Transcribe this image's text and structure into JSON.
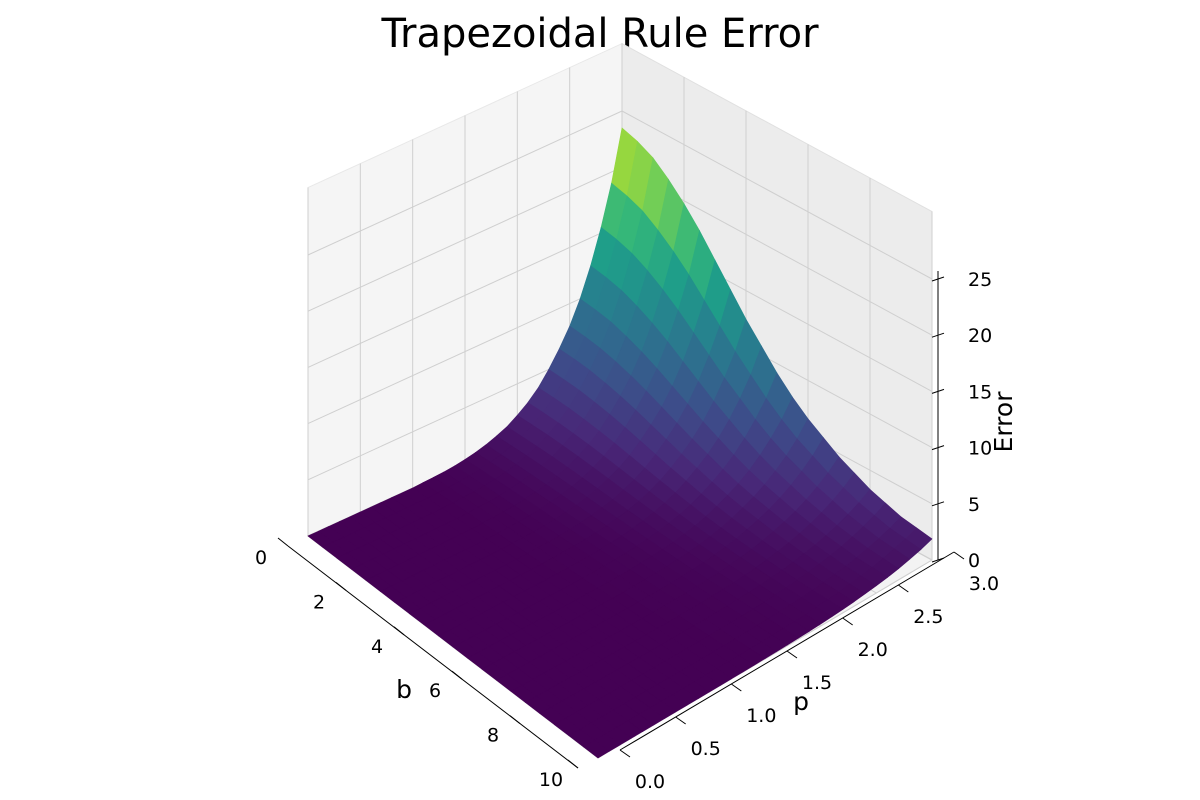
{
  "chart_data": {
    "type": "surface",
    "title": "Trapezoidal Rule Error",
    "xlabel": "b",
    "ylabel": "p",
    "zlabel": "Error",
    "xlim": [
      0,
      10
    ],
    "ylim": [
      0,
      3
    ],
    "zlim": [
      0,
      25
    ],
    "x_ticks": [
      "0",
      "2",
      "4",
      "6",
      "8",
      "10"
    ],
    "y_ticks": [
      "0.0",
      "0.5",
      "1.0",
      "1.5",
      "2.0",
      "2.5",
      "3.0"
    ],
    "z_ticks": [
      "0",
      "5",
      "10",
      "15",
      "20",
      "25"
    ],
    "colormap": "viridis",
    "grid": true,
    "b": [
      0,
      0.5,
      1,
      1.5,
      2,
      2.5,
      3,
      3.5,
      4,
      4.5,
      5,
      5.5,
      6,
      6.5,
      7,
      7.5,
      8,
      8.5,
      9,
      9.5,
      10
    ],
    "p": [
      0,
      0.1,
      0.2,
      0.3,
      0.4,
      0.5,
      0.6,
      0.7,
      0.8,
      0.9,
      1.0,
      1.1,
      1.2,
      1.3,
      1.4,
      1.5,
      1.6,
      1.7,
      1.8,
      1.9,
      2.0,
      2.1,
      2.2,
      2.3,
      2.4,
      2.5,
      2.6,
      2.7,
      2.8,
      2.9,
      3.0
    ],
    "error_max_at_b0": [
      0,
      0,
      0,
      0,
      0,
      0,
      0,
      0,
      0,
      0,
      0,
      0.05,
      0.1,
      0.15,
      0.25,
      0.4,
      0.6,
      0.85,
      1.2,
      1.6,
      2.2,
      2.9,
      3.8,
      5.0,
      6.4,
      8.0,
      10.0,
      12.5,
      15.5,
      19.0,
      23.5
    ],
    "error_profile_along_b": [
      1.0,
      0.98,
      0.95,
      0.9,
      0.84,
      0.77,
      0.69,
      0.61,
      0.53,
      0.46,
      0.39,
      0.33,
      0.28,
      0.24,
      0.2,
      0.17,
      0.14,
      0.12,
      0.1,
      0.09,
      0.08
    ]
  }
}
